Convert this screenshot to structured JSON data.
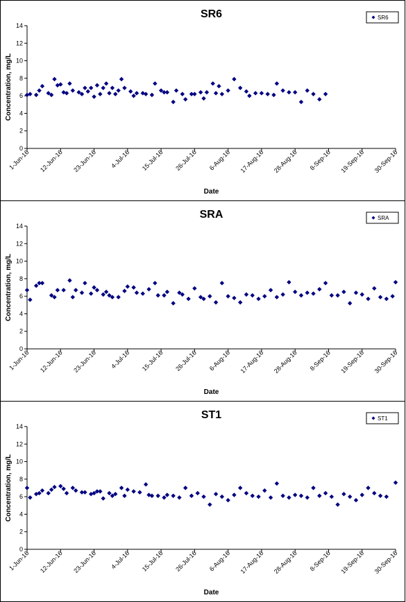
{
  "chart_data": [
    {
      "type": "scatter",
      "title": "SR6",
      "xlabel": "Date",
      "ylabel": "Concentration, mg/L",
      "ylim": [
        0,
        14
      ],
      "yticks": [
        0,
        2,
        4,
        6,
        8,
        10,
        12,
        14
      ],
      "xlim": [
        "2016-06-01",
        "2016-09-30"
      ],
      "xtick_labels": [
        "1-Jun-16",
        "12-Jun-16",
        "23-Jun-16",
        "4-Jul-16",
        "15-Jul-16",
        "26-Jul-16",
        "6-Aug-16",
        "17-Aug-16",
        "28-Aug-16",
        "8-Sep-16",
        "19-Sep-16",
        "30-Sep-16"
      ],
      "grid": false,
      "legend_position": "top-right",
      "marker_color": "#000080",
      "series": [
        {
          "name": "SR6",
          "x": [
            "2016-06-01",
            "2016-06-02",
            "2016-06-04",
            "2016-06-05",
            "2016-06-06",
            "2016-06-08",
            "2016-06-09",
            "2016-06-10",
            "2016-06-11",
            "2016-06-12",
            "2016-06-13",
            "2016-06-14",
            "2016-06-15",
            "2016-06-16",
            "2016-06-18",
            "2016-06-19",
            "2016-06-20",
            "2016-06-21",
            "2016-06-22",
            "2016-06-23",
            "2016-06-24",
            "2016-06-25",
            "2016-06-26",
            "2016-06-27",
            "2016-06-28",
            "2016-06-29",
            "2016-06-30",
            "2016-07-01",
            "2016-07-02",
            "2016-07-03",
            "2016-07-05",
            "2016-07-06",
            "2016-07-07",
            "2016-07-09",
            "2016-07-10",
            "2016-07-12",
            "2016-07-13",
            "2016-07-15",
            "2016-07-16",
            "2016-07-17",
            "2016-07-19",
            "2016-07-20",
            "2016-07-22",
            "2016-07-23",
            "2016-07-25",
            "2016-07-26",
            "2016-07-28",
            "2016-07-29",
            "2016-07-30",
            "2016-08-01",
            "2016-08-02",
            "2016-08-03",
            "2016-08-04",
            "2016-08-06",
            "2016-08-08",
            "2016-08-10",
            "2016-08-12",
            "2016-08-13",
            "2016-08-15",
            "2016-08-17",
            "2016-08-19",
            "2016-08-21",
            "2016-08-22",
            "2016-08-24",
            "2016-08-26",
            "2016-08-28",
            "2016-08-30",
            "2016-09-01",
            "2016-09-03",
            "2016-09-05",
            "2016-09-07"
          ],
          "y": [
            6.1,
            6.2,
            6.1,
            6.6,
            7.1,
            6.3,
            6.1,
            7.9,
            7.2,
            7.3,
            6.4,
            6.3,
            7.4,
            6.6,
            6.4,
            6.2,
            6.9,
            6.5,
            6.9,
            5.9,
            7.2,
            6.2,
            6.9,
            7.4,
            6.3,
            6.9,
            6.2,
            6.6,
            7.9,
            6.9,
            6.5,
            6.0,
            6.3,
            6.3,
            6.2,
            6.1,
            7.4,
            6.6,
            6.4,
            6.4,
            5.3,
            6.6,
            6.2,
            5.6,
            6.2,
            6.2,
            6.4,
            5.7,
            6.4,
            7.4,
            6.3,
            7.1,
            6.2,
            6.6,
            7.9,
            6.9,
            6.5,
            6.0,
            6.3,
            6.3,
            6.2,
            6.1,
            7.4,
            6.6,
            6.4,
            6.4,
            5.3,
            6.6,
            6.2,
            5.6,
            6.2
          ]
        }
      ]
    },
    {
      "type": "scatter",
      "title": "SRA",
      "xlabel": "Date",
      "ylabel": "Concentration, mg/L",
      "ylim": [
        0,
        14
      ],
      "yticks": [
        0,
        2,
        4,
        6,
        8,
        10,
        12,
        14
      ],
      "xlim": [
        "2016-06-01",
        "2016-09-30"
      ],
      "xtick_labels": [
        "1-Jun-16",
        "12-Jun-16",
        "23-Jun-16",
        "4-Jul-16",
        "15-Jul-16",
        "26-Jul-16",
        "6-Aug-16",
        "17-Aug-16",
        "28-Aug-16",
        "8-Sep-16",
        "19-Sep-16",
        "30-Sep-16"
      ],
      "grid": false,
      "legend_position": "top-right",
      "marker_color": "#000080",
      "series": [
        {
          "name": "SRA",
          "x": [
            "2016-06-01",
            "2016-06-02",
            "2016-06-04",
            "2016-06-05",
            "2016-06-06",
            "2016-06-09",
            "2016-06-10",
            "2016-06-11",
            "2016-06-13",
            "2016-06-15",
            "2016-06-16",
            "2016-06-17",
            "2016-06-19",
            "2016-06-20",
            "2016-06-22",
            "2016-06-23",
            "2016-06-24",
            "2016-06-26",
            "2016-06-27",
            "2016-06-28",
            "2016-06-29",
            "2016-07-01",
            "2016-07-03",
            "2016-07-04",
            "2016-07-06",
            "2016-07-07",
            "2016-07-09",
            "2016-07-11",
            "2016-07-13",
            "2016-07-14",
            "2016-07-16",
            "2016-07-17",
            "2016-07-19",
            "2016-07-21",
            "2016-07-22",
            "2016-07-24",
            "2016-07-26",
            "2016-07-28",
            "2016-07-29",
            "2016-07-31",
            "2016-08-02",
            "2016-08-04",
            "2016-08-06",
            "2016-08-08",
            "2016-08-10",
            "2016-08-12",
            "2016-08-14",
            "2016-08-16",
            "2016-08-18",
            "2016-08-20",
            "2016-08-22",
            "2016-08-24",
            "2016-08-26",
            "2016-08-28",
            "2016-08-30",
            "2016-09-01",
            "2016-09-03",
            "2016-09-05",
            "2016-09-07",
            "2016-09-09",
            "2016-09-11",
            "2016-09-13",
            "2016-09-15",
            "2016-09-17",
            "2016-09-19",
            "2016-09-21",
            "2016-09-23",
            "2016-09-25",
            "2016-09-27",
            "2016-09-29",
            "2016-09-30"
          ],
          "y": [
            6.7,
            5.6,
            7.2,
            7.5,
            7.5,
            6.1,
            5.9,
            6.7,
            6.7,
            7.8,
            5.9,
            6.7,
            6.4,
            7.5,
            6.3,
            7.0,
            6.7,
            6.2,
            6.5,
            6.1,
            5.9,
            5.9,
            6.6,
            7.1,
            7.0,
            6.4,
            6.3,
            6.8,
            7.5,
            6.1,
            6.1,
            6.5,
            5.2,
            6.4,
            6.2,
            5.7,
            6.9,
            5.9,
            5.7,
            6.0,
            5.3,
            7.5,
            6.0,
            5.8,
            5.3,
            6.2,
            6.1,
            5.7,
            6.0,
            6.7,
            5.9,
            6.2,
            7.6,
            6.5,
            6.1,
            6.4,
            6.3,
            6.8,
            7.5,
            6.1,
            6.1,
            6.5,
            5.2,
            6.4,
            6.2,
            5.7,
            6.9,
            5.9,
            5.7,
            6.0,
            7.6
          ]
        }
      ]
    },
    {
      "type": "scatter",
      "title": "ST1",
      "xlabel": "Date",
      "ylabel": "Concentration, mg/L",
      "ylim": [
        0,
        14
      ],
      "yticks": [
        0,
        2,
        4,
        6,
        8,
        10,
        12,
        14
      ],
      "xlim": [
        "2016-06-01",
        "2016-09-30"
      ],
      "xtick_labels": [
        "1-Jun-16",
        "12-Jun-16",
        "23-Jun-16",
        "4-Jul-16",
        "15-Jul-16",
        "26-Jul-16",
        "6-Aug-16",
        "17-Aug-16",
        "28-Aug-16",
        "8-Sep-16",
        "19-Sep-16",
        "30-Sep-16"
      ],
      "grid": false,
      "legend_position": "top-right",
      "marker_color": "#000080",
      "series": [
        {
          "name": "ST1",
          "x": [
            "2016-06-01",
            "2016-06-02",
            "2016-06-04",
            "2016-06-05",
            "2016-06-06",
            "2016-06-08",
            "2016-06-09",
            "2016-06-10",
            "2016-06-12",
            "2016-06-13",
            "2016-06-14",
            "2016-06-16",
            "2016-06-17",
            "2016-06-19",
            "2016-06-20",
            "2016-06-22",
            "2016-06-23",
            "2016-06-24",
            "2016-06-25",
            "2016-06-26",
            "2016-06-28",
            "2016-06-29",
            "2016-06-30",
            "2016-07-02",
            "2016-07-03",
            "2016-07-04",
            "2016-07-06",
            "2016-07-08",
            "2016-07-10",
            "2016-07-11",
            "2016-07-12",
            "2016-07-14",
            "2016-07-16",
            "2016-07-17",
            "2016-07-19",
            "2016-07-21",
            "2016-07-23",
            "2016-07-25",
            "2016-07-27",
            "2016-07-29",
            "2016-07-31",
            "2016-08-02",
            "2016-08-04",
            "2016-08-06",
            "2016-08-08",
            "2016-08-10",
            "2016-08-12",
            "2016-08-14",
            "2016-08-16",
            "2016-08-18",
            "2016-08-20",
            "2016-08-22",
            "2016-08-24",
            "2016-08-26",
            "2016-08-28",
            "2016-08-30",
            "2016-09-01",
            "2016-09-03",
            "2016-09-05",
            "2016-09-07",
            "2016-09-09",
            "2016-09-11",
            "2016-09-13",
            "2016-09-15",
            "2016-09-17",
            "2016-09-19",
            "2016-09-21",
            "2016-09-23",
            "2016-09-25",
            "2016-09-27",
            "2016-09-30"
          ],
          "y": [
            7.0,
            5.9,
            6.3,
            6.4,
            6.7,
            6.4,
            6.8,
            7.1,
            7.2,
            6.9,
            6.4,
            7.0,
            6.7,
            6.5,
            6.5,
            6.3,
            6.4,
            6.6,
            6.6,
            5.8,
            6.4,
            6.1,
            6.3,
            7.0,
            6.1,
            6.8,
            6.6,
            6.5,
            7.4,
            6.2,
            6.1,
            6.1,
            5.9,
            6.2,
            6.1,
            5.9,
            7.0,
            6.1,
            6.4,
            6.0,
            5.1,
            6.3,
            6.0,
            5.6,
            6.2,
            7.0,
            6.4,
            6.1,
            6.0,
            6.7,
            5.9,
            7.5,
            6.1,
            5.9,
            6.2,
            6.1,
            5.9,
            7.0,
            6.1,
            6.4,
            6.0,
            5.1,
            6.3,
            6.0,
            5.6,
            6.2,
            7.0,
            6.4,
            6.1,
            6.0,
            7.6
          ]
        }
      ]
    }
  ]
}
